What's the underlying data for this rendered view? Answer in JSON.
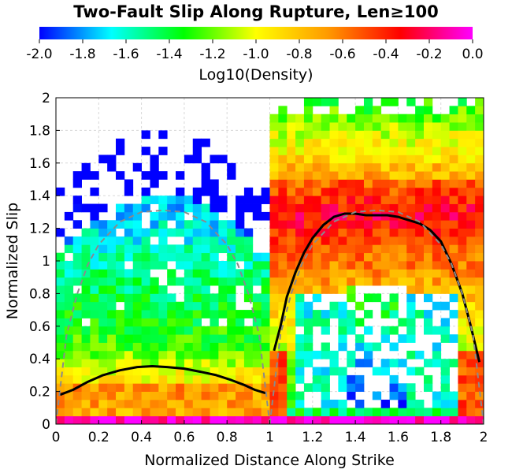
{
  "chart_data": {
    "type": "heatmap",
    "title": "Two-Fault Slip Along Rupture, Len≥100",
    "colorbar": {
      "label": "Log10(Density)",
      "range": [
        -2.0,
        0.0
      ],
      "ticks": [
        "-2.0",
        "-1.8",
        "-1.6",
        "-1.4",
        "-1.2",
        "-1.0",
        "-0.8",
        "-0.6",
        "-0.4",
        "-0.2",
        "0.0"
      ],
      "colors": [
        "#0000ff",
        "#00ffff",
        "#00ff00",
        "#ffff00",
        "#ff9900",
        "#ff0000",
        "#ff00ff"
      ]
    },
    "xlabel": "Normalized Distance Along Strike",
    "ylabel": "Normalized Slip",
    "xlim": [
      0,
      2
    ],
    "ylim": [
      0,
      2
    ],
    "xticks": [
      "0",
      "0.2",
      "0.4",
      "0.6",
      "0.8",
      "1",
      "1.2",
      "1.4",
      "1.6",
      "1.8",
      "2"
    ],
    "yticks": [
      "0",
      "0.2",
      "0.4",
      "0.6",
      "0.8",
      "1",
      "1.2",
      "1.4",
      "1.6",
      "1.8",
      "2"
    ],
    "grid": true,
    "cell": {
      "dx": 0.04,
      "dy": 0.05
    },
    "series": [
      {
        "style": "solid-black",
        "x": [
          0.02,
          0.08,
          0.15,
          0.22,
          0.3,
          0.38,
          0.45,
          0.52,
          0.6,
          0.68,
          0.75,
          0.82,
          0.88,
          0.93,
          0.98
        ],
        "y": [
          0.18,
          0.21,
          0.26,
          0.3,
          0.33,
          0.35,
          0.355,
          0.35,
          0.34,
          0.32,
          0.3,
          0.27,
          0.24,
          0.21,
          0.19
        ]
      },
      {
        "style": "solid-black",
        "x": [
          1.02,
          1.05,
          1.08,
          1.12,
          1.16,
          1.2,
          1.25,
          1.3,
          1.35,
          1.4,
          1.45,
          1.5,
          1.55,
          1.6,
          1.65,
          1.7,
          1.75,
          1.8,
          1.85,
          1.9,
          1.94,
          1.98
        ],
        "y": [
          0.45,
          0.6,
          0.78,
          0.93,
          1.05,
          1.14,
          1.22,
          1.27,
          1.29,
          1.29,
          1.28,
          1.28,
          1.28,
          1.27,
          1.25,
          1.23,
          1.19,
          1.12,
          0.98,
          0.8,
          0.6,
          0.38
        ]
      },
      {
        "style": "dashed-gray",
        "x": [
          0.0,
          0.05,
          0.1,
          0.15,
          0.2,
          0.3,
          0.4,
          0.5,
          0.6,
          0.7,
          0.8,
          0.85,
          0.9,
          0.95,
          1.0
        ],
        "y": [
          0.0,
          0.55,
          0.8,
          0.98,
          1.1,
          1.24,
          1.3,
          1.31,
          1.3,
          1.24,
          1.1,
          0.98,
          0.8,
          0.55,
          0.0
        ]
      },
      {
        "style": "dashed-gray",
        "x": [
          1.0,
          1.05,
          1.1,
          1.15,
          1.2,
          1.3,
          1.4,
          1.5,
          1.6,
          1.7,
          1.8,
          1.85,
          1.9,
          1.95,
          2.0
        ],
        "y": [
          0.0,
          0.55,
          0.8,
          0.98,
          1.1,
          1.24,
          1.3,
          1.31,
          1.3,
          1.24,
          1.1,
          0.98,
          0.8,
          0.55,
          0.0
        ]
      }
    ]
  }
}
